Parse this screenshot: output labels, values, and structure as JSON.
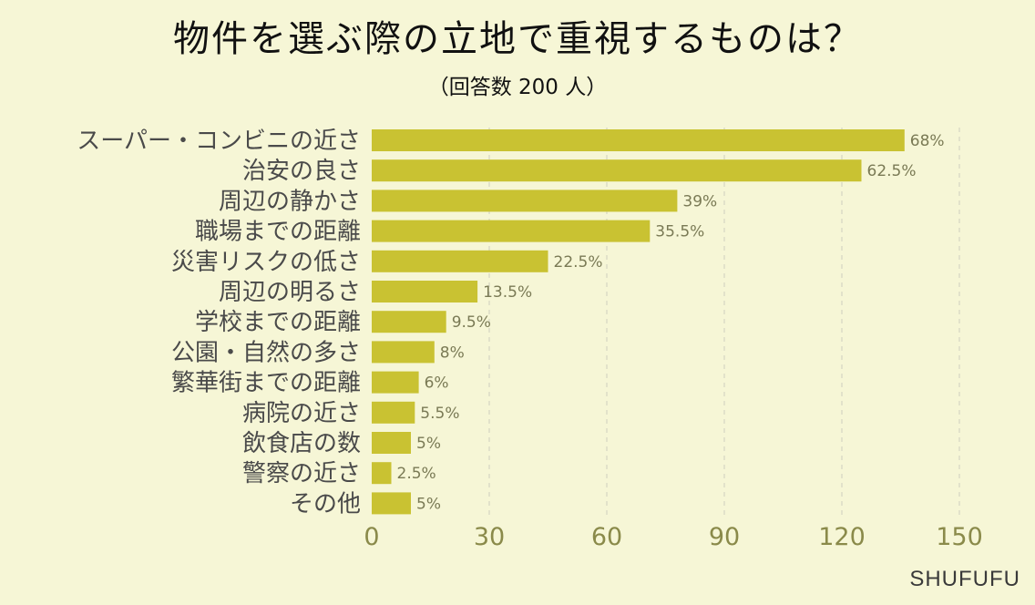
{
  "chart_data": {
    "type": "bar",
    "orientation": "horizontal",
    "title": "物件を選ぶ際の立地で重視するものは？",
    "subtitle": "（回答数 200 人）",
    "categories": [
      "スーパー・コンビニの近さ",
      "治安の良さ",
      "周辺の静かさ",
      "職場までの距離",
      "災害リスクの低さ",
      "周辺の明るさ",
      "学校までの距離",
      "公園・自然の多さ",
      "繁華街までの距離",
      "病院の近さ",
      "飲食店の数",
      "警察の近さ",
      "その他"
    ],
    "values": [
      136,
      125,
      78,
      71,
      45,
      27,
      19,
      16,
      12,
      11,
      10,
      5,
      10
    ],
    "value_labels": [
      "68%",
      "62.5%",
      "39%",
      "35.5%",
      "22.5%",
      "13.5%",
      "9.5%",
      "8%",
      "6%",
      "5.5%",
      "5%",
      "2.5%",
      "5%"
    ],
    "xlim": [
      0,
      150
    ],
    "xticks": [
      0,
      30,
      60,
      90,
      120,
      150
    ],
    "xlabel": "",
    "ylabel": "",
    "grid": true
  },
  "brand": "SHUFUFU",
  "colors": {
    "background": "#f6f6d6",
    "bar": "#c9c232",
    "tick_text": "#8a8a4a",
    "category_text": "#4a4a4a",
    "value_text": "#7a7a55"
  }
}
